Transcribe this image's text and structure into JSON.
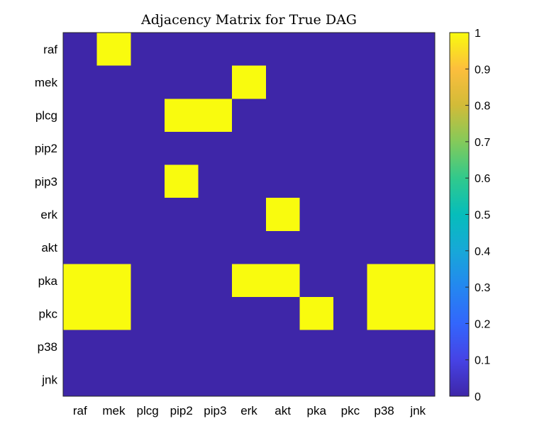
{
  "chart_data": {
    "type": "heatmap",
    "title": "Adjacency Matrix for True DAG",
    "xlabel": "",
    "ylabel": "",
    "row_labels": [
      "raf",
      "mek",
      "plcg",
      "pip2",
      "pip3",
      "erk",
      "akt",
      "pka",
      "pkc",
      "p38",
      "jnk"
    ],
    "col_labels": [
      "raf",
      "mek",
      "plcg",
      "pip2",
      "pip3",
      "erk",
      "akt",
      "pka",
      "pkc",
      "p38",
      "jnk"
    ],
    "values": [
      [
        0,
        1,
        0,
        0,
        0,
        0,
        0,
        0,
        0,
        0,
        0
      ],
      [
        0,
        0,
        0,
        0,
        0,
        1,
        0,
        0,
        0,
        0,
        0
      ],
      [
        0,
        0,
        0,
        1,
        1,
        0,
        0,
        0,
        0,
        0,
        0
      ],
      [
        0,
        0,
        0,
        0,
        0,
        0,
        0,
        0,
        0,
        0,
        0
      ],
      [
        0,
        0,
        0,
        1,
        0,
        0,
        0,
        0,
        0,
        0,
        0
      ],
      [
        0,
        0,
        0,
        0,
        0,
        0,
        1,
        0,
        0,
        0,
        0
      ],
      [
        0,
        0,
        0,
        0,
        0,
        0,
        0,
        0,
        0,
        0,
        0
      ],
      [
        1,
        1,
        0,
        0,
        0,
        1,
        1,
        0,
        0,
        1,
        1
      ],
      [
        1,
        1,
        0,
        0,
        0,
        0,
        0,
        1,
        0,
        1,
        1
      ],
      [
        0,
        0,
        0,
        0,
        0,
        0,
        0,
        0,
        0,
        0,
        0
      ],
      [
        0,
        0,
        0,
        0,
        0,
        0,
        0,
        0,
        0,
        0,
        0
      ]
    ],
    "colorbar": {
      "range": [
        0,
        1
      ],
      "ticks": [
        0,
        0.1,
        0.2,
        0.3,
        0.4,
        0.5,
        0.6,
        0.7,
        0.8,
        0.9,
        1
      ],
      "tick_labels": [
        "0",
        "0.1",
        "0.2",
        "0.3",
        "0.4",
        "0.5",
        "0.6",
        "0.7",
        "0.8",
        "0.9",
        "1"
      ],
      "colormap": "parula",
      "placement": "right"
    },
    "colors": {
      "low": "#3e26a8",
      "high": "#f9fb0e"
    },
    "grid": false
  }
}
